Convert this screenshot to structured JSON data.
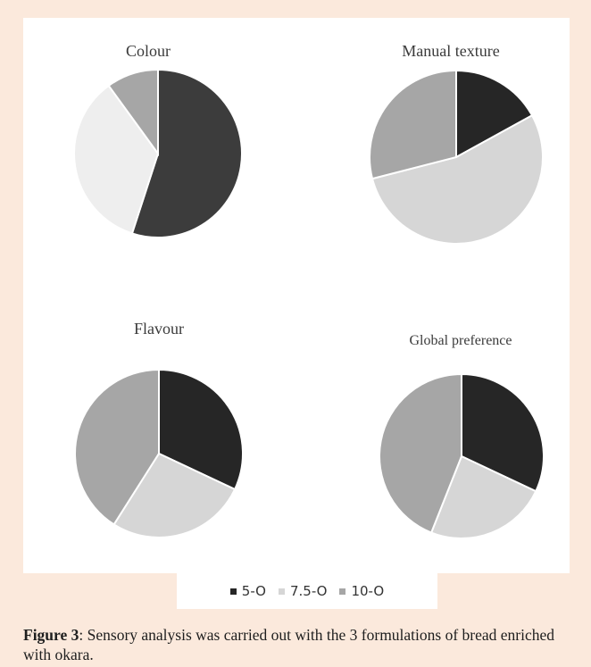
{
  "chart_data": [
    {
      "type": "pie",
      "title": "Colour",
      "labels": [
        "5-O",
        "7.5-O",
        "10-O"
      ],
      "values": [
        55,
        35,
        10
      ],
      "colors": [
        "#3c3c3c",
        "#eeeeee",
        "#a6a6a6"
      ]
    },
    {
      "type": "pie",
      "title": "Manual texture",
      "labels": [
        "5-O",
        "7.5-O",
        "10-O"
      ],
      "values": [
        17,
        54,
        29
      ],
      "colors": [
        "#262626",
        "#d6d6d6",
        "#a6a6a6"
      ]
    },
    {
      "type": "pie",
      "title": "Flavour",
      "labels": [
        "5-O",
        "7.5-O",
        "10-O"
      ],
      "values": [
        32,
        27,
        41
      ],
      "colors": [
        "#262626",
        "#d6d6d6",
        "#a6a6a6"
      ]
    },
    {
      "type": "pie",
      "title": "Global preference",
      "labels": [
        "5-O",
        "7.5-O",
        "10-O"
      ],
      "values": [
        32,
        24,
        44
      ],
      "colors": [
        "#262626",
        "#d6d6d6",
        "#a6a6a6"
      ]
    }
  ],
  "legend": [
    {
      "label": "5-O",
      "color": "#262626"
    },
    {
      "label": "7.5-O",
      "color": "#d6d6d6"
    },
    {
      "label": "10-O",
      "color": "#a6a6a6"
    }
  ],
  "caption": {
    "label": "Figure 3",
    "text": ": Sensory analysis was carried out with the 3 formulations of bread enriched with okara."
  }
}
